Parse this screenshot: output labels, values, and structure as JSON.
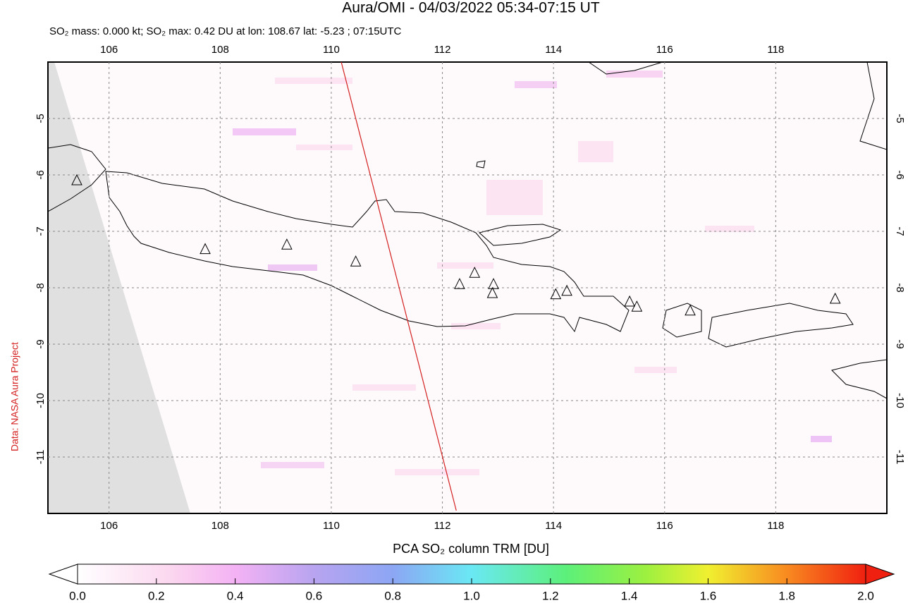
{
  "chart_data": {
    "type": "map",
    "title": "Aura/OMI - 04/03/2022 05:34-07:15 UT",
    "subtitle": "SO₂ mass: 0.000 kt; SO₂ max: 0.42 DU at lon: 108.67 lat: -5.23 ; 07:15UTC",
    "source": "Data: NASA Aura Project",
    "xlim": [
      104.9,
      120
    ],
    "ylim": [
      -12,
      -4
    ],
    "xticks": [
      106,
      108,
      110,
      112,
      114,
      116,
      118
    ],
    "yticks": [
      -5,
      -6,
      -7,
      -8,
      -9,
      -10,
      -11
    ],
    "grid": true,
    "volcanoes": {
      "lon": [
        105.42,
        107.73,
        109.2,
        110.44,
        112.31,
        112.58,
        112.92,
        112.9,
        114.04,
        114.24,
        115.37,
        115.5,
        116.46,
        119.07
      ],
      "lat": [
        -6.1,
        -7.32,
        -7.24,
        -7.54,
        -7.94,
        -7.74,
        -7.94,
        -8.1,
        -8.12,
        -8.06,
        -8.25,
        -8.34,
        -8.41,
        -8.2
      ]
    },
    "orbit_track": {
      "lon": [
        110.18,
        112.25
      ],
      "lat": [
        -4.0,
        -11.95
      ],
      "color": "#d42020"
    },
    "colorbar": {
      "label": "PCA SO₂ column TRM [DU]",
      "range": [
        0,
        2
      ],
      "ticks": [
        {
          "value": 0,
          "label": "0.0"
        },
        0.2,
        0.4,
        0.6,
        0.8,
        {
          "value": 1,
          "label": "1.0"
        },
        1.2,
        1.4,
        1.6,
        1.8,
        {
          "value": 2,
          "label": "2.0"
        }
      ]
    }
  }
}
